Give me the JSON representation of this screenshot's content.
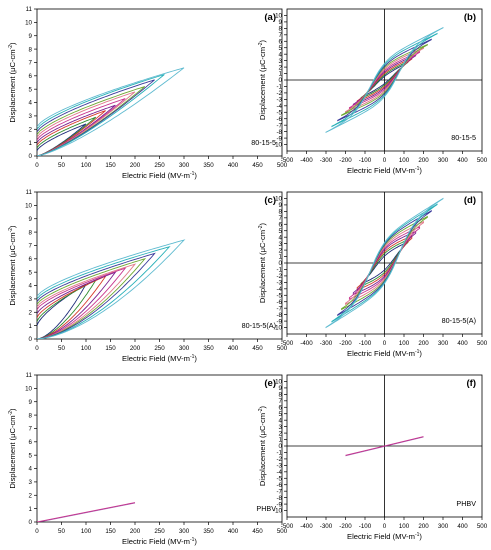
{
  "colors": {
    "axis": "#000000",
    "loops": [
      "#1f2d7a",
      "#2e8b2e",
      "#d63a2a",
      "#7a1f8f",
      "#c8368f",
      "#e07a8a",
      "#6ea832",
      "#3a3a9a",
      "#27b0b8",
      "#5fbbd0"
    ]
  },
  "chart_data": [
    {
      "panel": "(a)",
      "type": "line",
      "mode": "unipolar",
      "sample": "80-15-5",
      "xlabel": "Electric Field (MV-m",
      "xlabel_sup": "-1",
      "ylabel": "Displacement (μC-cm",
      "ylabel_sup": "-2",
      "xlim": [
        0,
        500
      ],
      "ylim": [
        0,
        11
      ],
      "xticks": [
        "0",
        "50",
        "100",
        "150",
        "200",
        "250",
        "300",
        "350",
        "400",
        "450",
        "500"
      ],
      "yticks": [
        "0",
        "1",
        "2",
        "3",
        "4",
        "5",
        "6",
        "7",
        "8",
        "9",
        "10",
        "11"
      ],
      "loops": [
        {
          "Emax": 100,
          "Dmax": 2.4,
          "r": 0.4,
          "e": 1.3
        },
        {
          "Emax": 120,
          "Dmax": 2.9,
          "r": 0.6,
          "e": 1.3
        },
        {
          "Emax": 140,
          "Dmax": 3.4,
          "r": 0.8,
          "e": 1.3
        },
        {
          "Emax": 160,
          "Dmax": 3.8,
          "r": 1.0,
          "e": 1.3
        },
        {
          "Emax": 180,
          "Dmax": 4.3,
          "r": 1.2,
          "e": 1.3
        },
        {
          "Emax": 200,
          "Dmax": 4.8,
          "r": 1.4,
          "e": 1.3
        },
        {
          "Emax": 220,
          "Dmax": 5.2,
          "r": 1.6,
          "e": 1.3
        },
        {
          "Emax": 240,
          "Dmax": 5.7,
          "r": 1.8,
          "e": 1.3
        },
        {
          "Emax": 260,
          "Dmax": 6.1,
          "r": 2.0,
          "e": 1.3
        },
        {
          "Emax": 300,
          "Dmax": 6.6,
          "r": 2.2,
          "e": 1.3
        }
      ]
    },
    {
      "panel": "(b)",
      "type": "line",
      "mode": "bipolar",
      "sample": "80-15-5",
      "xlabel": "Electric Field (MV-m",
      "xlabel_sup": "-1",
      "ylabel": "Displacement (μC-cm",
      "ylabel_sup": "-2",
      "xlim": [
        -500,
        500
      ],
      "ylim": [
        -11,
        11
      ],
      "xticks": [
        "-500",
        "-400",
        "-300",
        "-200",
        "-100",
        "0",
        "100",
        "200",
        "300",
        "400",
        "500"
      ],
      "yticks": [
        "-10",
        "-9",
        "-8",
        "-7",
        "-6",
        "-5",
        "-4",
        "-3",
        "-2",
        "-1",
        "0",
        "1",
        "2",
        "3",
        "4",
        "5",
        "6",
        "7",
        "8",
        "9",
        "10"
      ],
      "loops": [
        {
          "Emax": 100,
          "Dmax": 2.4,
          "r": 0.8,
          "ec": 45
        },
        {
          "Emax": 120,
          "Dmax": 2.9,
          "r": 1.1,
          "ec": 50
        },
        {
          "Emax": 140,
          "Dmax": 3.4,
          "r": 1.4,
          "ec": 55
        },
        {
          "Emax": 160,
          "Dmax": 3.9,
          "r": 1.7,
          "ec": 60
        },
        {
          "Emax": 180,
          "Dmax": 4.4,
          "r": 2.0,
          "ec": 63
        },
        {
          "Emax": 200,
          "Dmax": 5.0,
          "r": 2.3,
          "ec": 66
        },
        {
          "Emax": 220,
          "Dmax": 5.5,
          "r": 2.6,
          "ec": 68
        },
        {
          "Emax": 240,
          "Dmax": 6.3,
          "r": 2.9,
          "ec": 70
        },
        {
          "Emax": 270,
          "Dmax": 7.2,
          "r": 3.2,
          "ec": 72
        },
        {
          "Emax": 300,
          "Dmax": 8.1,
          "r": 3.5,
          "ec": 75
        }
      ]
    },
    {
      "panel": "(c)",
      "type": "line",
      "mode": "unipolar",
      "sample": "80-15-5(A)",
      "xlabel": "Electric Field (MV-m",
      "xlabel_sup": "-1",
      "ylabel": "Displacement (μC-cm",
      "ylabel_sup": "-2",
      "xlim": [
        0,
        500
      ],
      "ylim": [
        0,
        11
      ],
      "xticks": [
        "0",
        "50",
        "100",
        "150",
        "200",
        "250",
        "300",
        "350",
        "400",
        "450",
        "500"
      ],
      "yticks": [
        "0",
        "1",
        "2",
        "3",
        "4",
        "5",
        "6",
        "7",
        "8",
        "9",
        "10",
        "11"
      ],
      "loops": [
        {
          "Emax": 100,
          "Dmax": 4.1,
          "r": 1.0,
          "e": 1.6
        },
        {
          "Emax": 120,
          "Dmax": 4.4,
          "r": 1.3,
          "e": 1.6
        },
        {
          "Emax": 140,
          "Dmax": 4.7,
          "r": 1.6,
          "e": 1.6
        },
        {
          "Emax": 160,
          "Dmax": 5.0,
          "r": 1.9,
          "e": 1.6
        },
        {
          "Emax": 180,
          "Dmax": 5.3,
          "r": 2.2,
          "e": 1.6
        },
        {
          "Emax": 200,
          "Dmax": 5.6,
          "r": 2.4,
          "e": 1.6
        },
        {
          "Emax": 220,
          "Dmax": 6.0,
          "r": 2.6,
          "e": 1.6
        },
        {
          "Emax": 240,
          "Dmax": 6.4,
          "r": 2.8,
          "e": 1.6
        },
        {
          "Emax": 270,
          "Dmax": 6.9,
          "r": 3.0,
          "e": 1.6
        },
        {
          "Emax": 300,
          "Dmax": 7.4,
          "r": 3.2,
          "e": 1.6
        }
      ]
    },
    {
      "panel": "(d)",
      "type": "line",
      "mode": "bipolar",
      "sample": "80-15-5(A)",
      "xlabel": "Electric Field (MV-m",
      "xlabel_sup": "-1",
      "ylabel": "Displacement (μC-cm",
      "ylabel_sup": "-2",
      "xlim": [
        -500,
        500
      ],
      "ylim": [
        -11,
        11
      ],
      "xticks": [
        "-500",
        "-400",
        "-300",
        "-200",
        "-100",
        "0",
        "100",
        "200",
        "300",
        "400",
        "500"
      ],
      "yticks": [
        "-10",
        "-9",
        "-8",
        "-7",
        "-6",
        "-5",
        "-4",
        "-3",
        "-2",
        "-1",
        "0",
        "1",
        "2",
        "3",
        "4",
        "5",
        "6",
        "7",
        "8",
        "9",
        "10"
      ],
      "loops": [
        {
          "Emax": 100,
          "Dmax": 3.0,
          "r": 1.5,
          "ec": 50
        },
        {
          "Emax": 120,
          "Dmax": 3.6,
          "r": 2.0,
          "ec": 55
        },
        {
          "Emax": 140,
          "Dmax": 4.2,
          "r": 2.4,
          "ec": 60
        },
        {
          "Emax": 160,
          "Dmax": 4.9,
          "r": 2.8,
          "ec": 63
        },
        {
          "Emax": 180,
          "Dmax": 5.6,
          "r": 3.1,
          "ec": 66
        },
        {
          "Emax": 200,
          "Dmax": 6.4,
          "r": 3.4,
          "ec": 68
        },
        {
          "Emax": 220,
          "Dmax": 7.2,
          "r": 3.7,
          "ec": 70
        },
        {
          "Emax": 240,
          "Dmax": 8.1,
          "r": 3.9,
          "ec": 72
        },
        {
          "Emax": 270,
          "Dmax": 9.1,
          "r": 4.1,
          "ec": 74
        },
        {
          "Emax": 300,
          "Dmax": 10.0,
          "r": 4.3,
          "ec": 76
        }
      ]
    },
    {
      "panel": "(e)",
      "type": "line",
      "mode": "linear",
      "sample": "PHBV",
      "xlabel": "Electric Field (MV-m",
      "xlabel_sup": "-1",
      "ylabel": "Displacement (μC-cm",
      "ylabel_sup": "-2",
      "xlim": [
        0,
        500
      ],
      "ylim": [
        0,
        11
      ],
      "xticks": [
        "0",
        "50",
        "100",
        "150",
        "200",
        "250",
        "300",
        "350",
        "400",
        "450",
        "500"
      ],
      "yticks": [
        "0",
        "1",
        "2",
        "3",
        "4",
        "5",
        "6",
        "7",
        "8",
        "9",
        "10",
        "11"
      ],
      "series": [
        {
          "x": [
            0,
            200
          ],
          "y": [
            0,
            1.45
          ]
        }
      ]
    },
    {
      "panel": "(f)",
      "type": "line",
      "mode": "linear",
      "sample": "PHBV",
      "xlabel": "Electric Field (MV-m",
      "xlabel_sup": "-1",
      "ylabel": "Displacement (μC-cm",
      "ylabel_sup": "-2",
      "xlim": [
        -500,
        500
      ],
      "ylim": [
        -11,
        11
      ],
      "xticks": [
        "-500",
        "-400",
        "-300",
        "-200",
        "-100",
        "0",
        "100",
        "200",
        "300",
        "400",
        "500"
      ],
      "yticks": [
        "-10",
        "-9",
        "-8",
        "-7",
        "-6",
        "-5",
        "-4",
        "-3",
        "-2",
        "-1",
        "0",
        "1",
        "2",
        "3",
        "4",
        "5",
        "6",
        "7",
        "8",
        "9",
        "10"
      ],
      "series": [
        {
          "x": [
            -200,
            200
          ],
          "y": [
            -1.45,
            1.45
          ]
        }
      ]
    }
  ]
}
